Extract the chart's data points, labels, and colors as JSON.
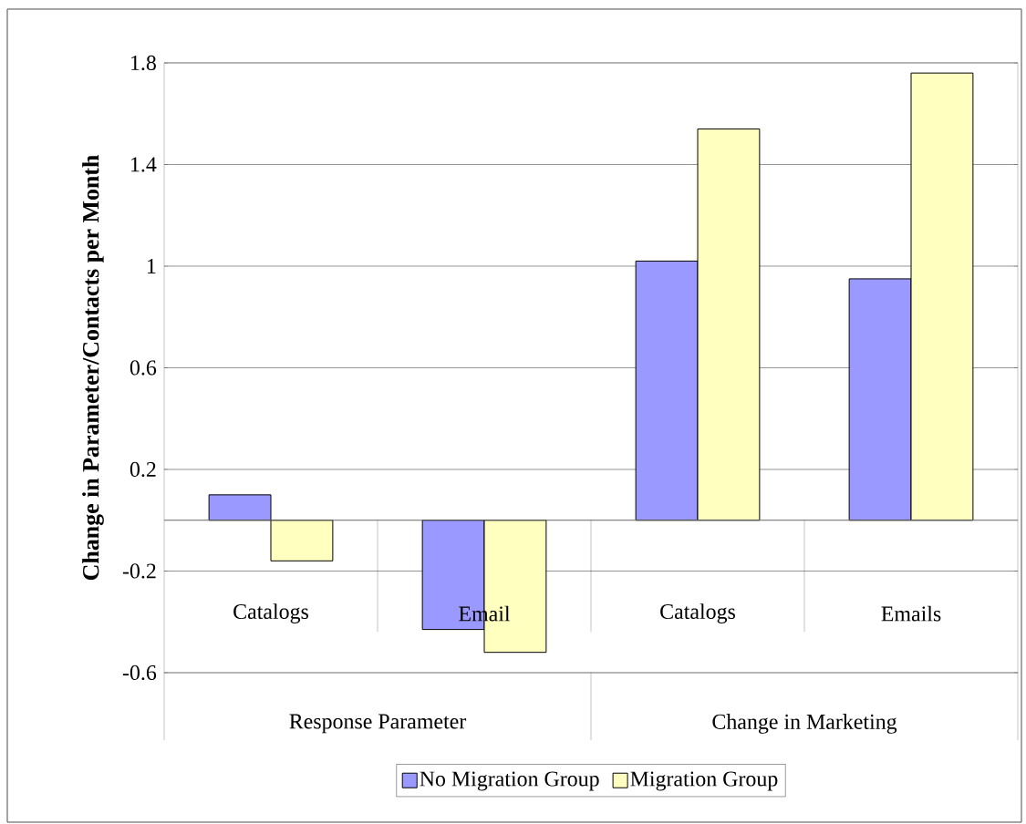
{
  "chart_data": {
    "type": "bar",
    "ylabel": "Change in Parameter/Contacts per Month",
    "categories": [
      "Catalogs",
      "Email",
      "Catalogs",
      "Emails"
    ],
    "series": [
      {
        "name": "No Migration Group",
        "color": "#9999ff",
        "values": [
          0.1,
          -0.43,
          1.02,
          0.95
        ]
      },
      {
        "name": "Migration Group",
        "color": "#ffffc0",
        "values": [
          -0.16,
          -0.52,
          1.54,
          1.76
        ]
      }
    ],
    "annotations": [
      "Response Parameter",
      "Change in Marketing"
    ],
    "ylim": [
      -0.6,
      1.8
    ],
    "yticks": [
      -0.6,
      -0.2,
      0.2,
      0.6,
      1,
      1.4,
      1.8
    ],
    "grid": "y",
    "legend": "bottom"
  }
}
